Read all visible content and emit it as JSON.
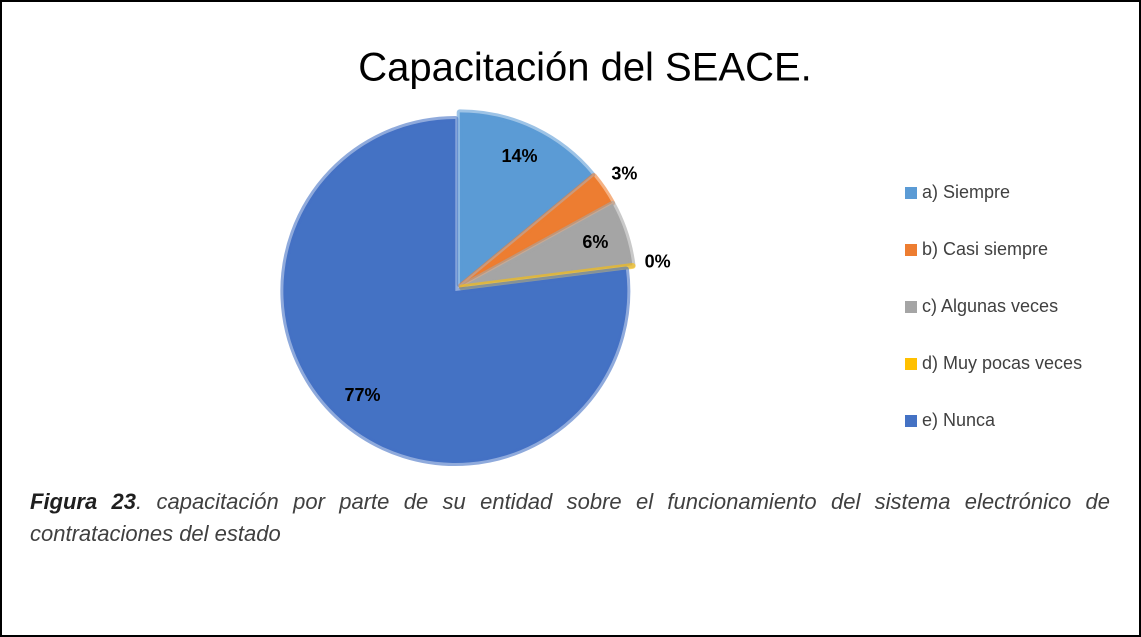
{
  "chart_data": {
    "type": "pie",
    "title": "Capacitación  del SEACE.",
    "categories": [
      "a) Siempre",
      "b) Casi siempre",
      "c) Algunas veces",
      "d) Muy pocas veces",
      "e) Nunca"
    ],
    "values": [
      14,
      3,
      6,
      0,
      77
    ],
    "value_labels": [
      "14%",
      "3%",
      "6%",
      "0%",
      "77%"
    ],
    "colors": [
      "#5b9bd5",
      "#ed7d31",
      "#a5a5a5",
      "#ffc000",
      "#4472c4"
    ],
    "legend": "right"
  },
  "caption": {
    "label": "Figura 23",
    "text": ". capacitación por parte de su entidad sobre el funcionamiento del sistema electrónico de contrataciones del estado"
  }
}
